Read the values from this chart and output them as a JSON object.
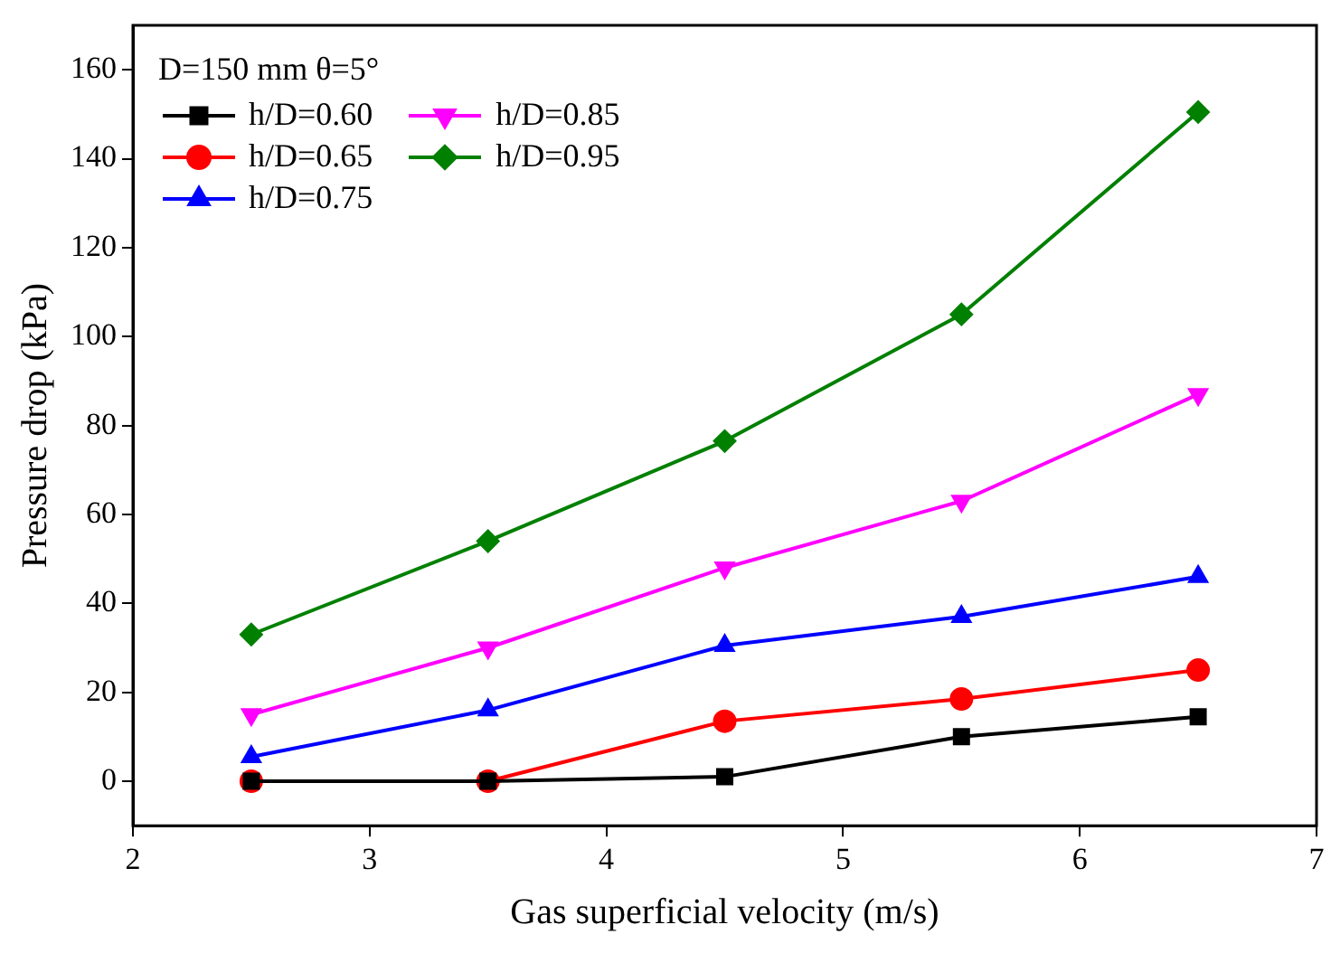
{
  "chart_data": {
    "type": "line",
    "xlabel": "Gas superficial velocity (m/s)",
    "ylabel": "Pressure drop (kPa)",
    "legend_title": "D=150 mm  θ=5°",
    "x": [
      2.5,
      3.5,
      4.5,
      5.5,
      6.5
    ],
    "series": [
      {
        "name": "h/D=0.60",
        "color": "#000000",
        "marker": "square",
        "values": [
          0,
          0,
          1,
          10,
          14.5
        ]
      },
      {
        "name": "h/D=0.65",
        "color": "#ff0000",
        "marker": "circle",
        "values": [
          0,
          0,
          13.5,
          18.5,
          25
        ]
      },
      {
        "name": "h/D=0.75",
        "color": "#0000ff",
        "marker": "triangle",
        "values": [
          5.5,
          16,
          30.5,
          37,
          46
        ]
      },
      {
        "name": "h/D=0.85",
        "color": "#ff00ff",
        "marker": "triangle-down",
        "values": [
          15,
          30,
          48,
          63,
          87
        ]
      },
      {
        "name": "h/D=0.95",
        "color": "#008000",
        "marker": "diamond",
        "values": [
          33,
          54,
          76.5,
          105,
          150.5
        ]
      }
    ],
    "xlim": [
      2,
      7
    ],
    "xticks": [
      2,
      3,
      4,
      5,
      6,
      7
    ],
    "ylim": [
      -10,
      170
    ],
    "yticks": [
      0,
      20,
      40,
      60,
      80,
      100,
      120,
      140,
      160
    ],
    "grid": false,
    "legend": "top left",
    "line_style": "solid"
  }
}
